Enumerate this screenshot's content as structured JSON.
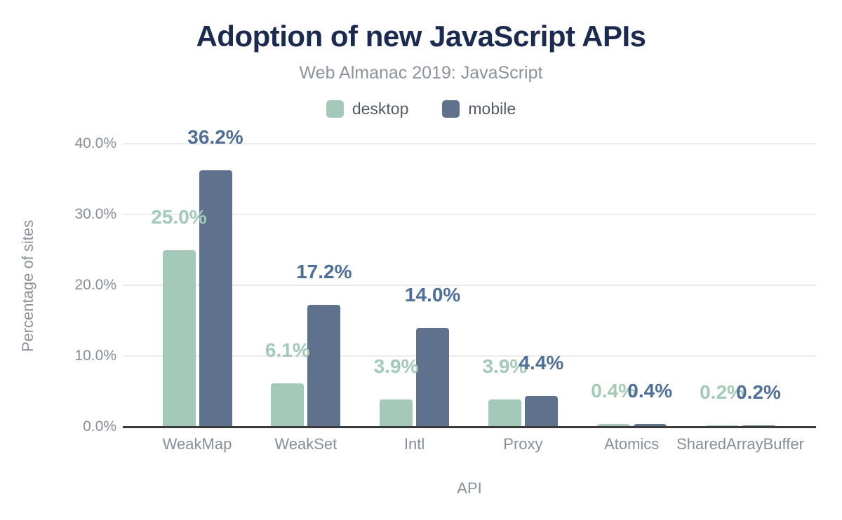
{
  "chart_data": {
    "type": "bar",
    "title": "Adoption of new JavaScript APIs",
    "subtitle": "Web Almanac 2019: JavaScript",
    "xlabel": "API",
    "ylabel": "Percentage of sites",
    "categories": [
      "WeakMap",
      "WeakSet",
      "Intl",
      "Proxy",
      "Atomics",
      "SharedArrayBuffer"
    ],
    "series": [
      {
        "name": "desktop",
        "color": "#a5c9b8",
        "label_color": "#a3cab7",
        "values": [
          25.0,
          6.1,
          3.9,
          3.9,
          0.4,
          0.2
        ],
        "labels": [
          "25.0%",
          "6.1%",
          "3.9%",
          "3.9%",
          "0.4%",
          "0.2%"
        ]
      },
      {
        "name": "mobile",
        "color": "#5f718c",
        "label_color": "#4f6f96",
        "values": [
          36.2,
          17.2,
          14.0,
          4.4,
          0.4,
          0.2
        ],
        "labels": [
          "36.2%",
          "17.2%",
          "14.0%",
          "4.4%",
          "0.4%",
          "0.2%"
        ]
      }
    ],
    "y_ticks": [
      {
        "value": 0,
        "label": "0.0%"
      },
      {
        "value": 10,
        "label": "10.0%"
      },
      {
        "value": 20,
        "label": "20.0%"
      },
      {
        "value": 30,
        "label": "30.0%"
      },
      {
        "value": 40,
        "label": "40.0%"
      }
    ],
    "ylim": [
      0,
      40
    ],
    "grid": true,
    "legend_position": "top",
    "colors": {
      "title": "#1b2a4e",
      "subtitle": "#8d939b",
      "axis_text": "#878e97",
      "gridline": "#ececec",
      "axis_line": "#3b3b3b",
      "background": "#ffffff"
    }
  }
}
